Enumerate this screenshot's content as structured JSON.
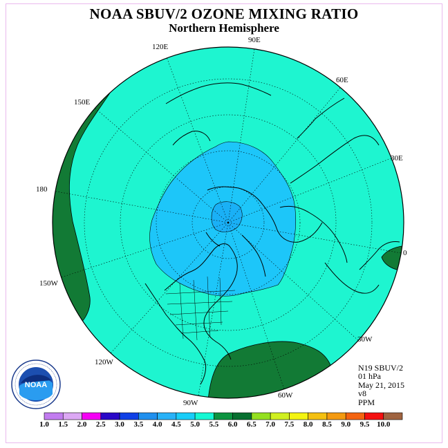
{
  "title": "NOAA SBUV/2 OZONE MIXING RATIO",
  "subtitle": "Northern Hemisphere",
  "longitude_labels": {
    "e90": "90E",
    "e60": "60E",
    "e30": "30E",
    "zero": "0",
    "w30": "30W",
    "w60": "60W",
    "w90": "90W",
    "w120": "120W",
    "w150": "150W",
    "d180": "180",
    "e150": "150E",
    "e120": "120E"
  },
  "info": {
    "instrument": "N19 SBUV/2",
    "level": "01 hPa",
    "date": "May 21, 2015",
    "version": "v8",
    "units": "PPM"
  },
  "logo": {
    "text": "NOAA",
    "ring_text": "NATIONAL OCEANIC AND ATMOSPHERIC ADMINISTRATION · U.S. DEPARTMENT OF COMMERCE"
  },
  "colorbar": {
    "labels": [
      "1.0",
      "1.5",
      "2.0",
      "2.5",
      "3.0",
      "3.5",
      "4.0",
      "4.5",
      "5.0",
      "5.5",
      "6.0",
      "6.5",
      "7.0",
      "7.5",
      "8.0",
      "8.5",
      "9.0",
      "9.5",
      "10.0"
    ],
    "colors": [
      "#c27cf0",
      "#dca8f4",
      "#f500f5",
      "#2a08c8",
      "#1040e6",
      "#2090ee",
      "#28b2f8",
      "#18cdf8",
      "#14f8d4",
      "#0c9440",
      "#087030",
      "#94e020",
      "#d0f020",
      "#f4f410",
      "#f4c010",
      "#f49a10",
      "#f46410",
      "#f41010",
      "#a06440"
    ]
  },
  "map_fields": {
    "background_range": "4.5 - 5.0",
    "background_color": "#1ef5d0",
    "inner_range": "4.0 - 4.5",
    "inner_color": "#1dc6f9",
    "core_range": "3.5 - 4.0",
    "core_color": "#1ab0f6",
    "high_range": "5.0 - 5.5",
    "high_color": "#127a35"
  }
}
